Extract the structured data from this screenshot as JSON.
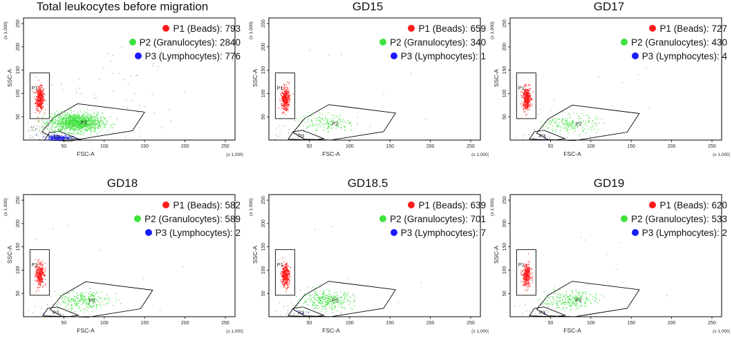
{
  "chart_data": [
    {
      "type": "scatter",
      "title": "Total leukocytes before migration",
      "xlabel": "FSC-A",
      "ylabel": "SSC-A",
      "xlim": [
        0,
        262
      ],
      "ylim": [
        0,
        262
      ],
      "xticks": [
        "50",
        "100",
        "150",
        "200",
        "250"
      ],
      "yticks": [
        "50",
        "100",
        "150",
        "200",
        "250"
      ],
      "axis_multiplier": "(x 1,000)",
      "gates": [
        "P1",
        "P2",
        "P3"
      ],
      "series": [
        {
          "name": "P1 (Beads)",
          "count": 793,
          "color": "#ff1a1a",
          "center": [
            20,
            90
          ]
        },
        {
          "name": "P2 (Granulocytes)",
          "count": 2840,
          "color": "#3ee23e",
          "center": [
            65,
            38
          ]
        },
        {
          "name": "P3 (Lymphocytes)",
          "count": 776,
          "color": "#1a1aff",
          "center": [
            42,
            6
          ]
        }
      ]
    },
    {
      "type": "scatter",
      "title": "GD15",
      "xlabel": "FSC-A",
      "ylabel": "SSC-A",
      "xlim": [
        0,
        262
      ],
      "ylim": [
        0,
        262
      ],
      "xticks": [
        "50",
        "100",
        "150",
        "200",
        "250"
      ],
      "yticks": [
        "50",
        "100",
        "150",
        "200",
        "250"
      ],
      "axis_multiplier": "(x 1,000)",
      "gates": [
        "P1",
        "P2",
        "P3"
      ],
      "series": [
        {
          "name": "P1 (Beads)",
          "count": 659,
          "color": "#ff1a1a",
          "center": [
            20,
            90
          ]
        },
        {
          "name": "P2 (Granulocytes)",
          "count": 340,
          "color": "#3ee23e",
          "center": [
            72,
            36
          ]
        },
        {
          "name": "P3 (Lymphocytes)",
          "count": 1,
          "color": "#1a1aff",
          "center": [
            40,
            8
          ]
        }
      ]
    },
    {
      "type": "scatter",
      "title": "GD17",
      "xlabel": "FSC-A",
      "ylabel": "SSC-A",
      "xlim": [
        0,
        262
      ],
      "ylim": [
        0,
        262
      ],
      "xticks": [
        "50",
        "100",
        "150",
        "200",
        "250"
      ],
      "yticks": [
        "50",
        "100",
        "150",
        "200",
        "250"
      ],
      "axis_multiplier": "(x 1,000)",
      "gates": [
        "P1",
        "P2",
        "P3"
      ],
      "series": [
        {
          "name": "P1 (Beads)",
          "count": 727,
          "color": "#ff1a1a",
          "center": [
            20,
            90
          ]
        },
        {
          "name": "P2 (Granulocytes)",
          "count": 430,
          "color": "#3ee23e",
          "center": [
            75,
            35
          ]
        },
        {
          "name": "P3 (Lymphocytes)",
          "count": 4,
          "color": "#1a1aff",
          "center": [
            40,
            8
          ]
        }
      ]
    },
    {
      "type": "scatter",
      "title": "GD18",
      "xlabel": "FSC-A",
      "ylabel": "SSC-A",
      "xlim": [
        0,
        262
      ],
      "ylim": [
        0,
        262
      ],
      "xticks": [
        "50",
        "100",
        "150",
        "200",
        "250"
      ],
      "yticks": [
        "50",
        "100",
        "150",
        "200",
        "250"
      ],
      "axis_multiplier": "(x 1,000)",
      "gates": [
        "P1",
        "P2",
        "P3"
      ],
      "series": [
        {
          "name": "P1 (Beads)",
          "count": 582,
          "color": "#ff1a1a",
          "center": [
            20,
            90
          ]
        },
        {
          "name": "P2 (Granulocytes)",
          "count": 589,
          "color": "#3ee23e",
          "center": [
            75,
            35
          ]
        },
        {
          "name": "P3 (Lymphocytes)",
          "count": 2,
          "color": "#1a1aff",
          "center": [
            40,
            8
          ]
        }
      ]
    },
    {
      "type": "scatter",
      "title": "GD18.5",
      "xlabel": "FSC-A",
      "ylabel": "SSC-A",
      "xlim": [
        0,
        262
      ],
      "ylim": [
        0,
        262
      ],
      "xticks": [
        "50",
        "100",
        "150",
        "200",
        "250"
      ],
      "yticks": [
        "50",
        "100",
        "150",
        "200",
        "250"
      ],
      "axis_multiplier": "(x 1,000)",
      "gates": [
        "P1",
        "P2",
        "P3"
      ],
      "series": [
        {
          "name": "P1 (Beads)",
          "count": 639,
          "color": "#ff1a1a",
          "center": [
            20,
            90
          ]
        },
        {
          "name": "P2 (Granulocytes)",
          "count": 701,
          "color": "#3ee23e",
          "center": [
            72,
            36
          ]
        },
        {
          "name": "P3 (Lymphocytes)",
          "count": 7,
          "color": "#1a1aff",
          "center": [
            40,
            8
          ]
        }
      ]
    },
    {
      "type": "scatter",
      "title": "GD19",
      "xlabel": "FSC-A",
      "ylabel": "SSC-A",
      "xlim": [
        0,
        262
      ],
      "ylim": [
        0,
        262
      ],
      "xticks": [
        "50",
        "100",
        "150",
        "200",
        "250"
      ],
      "yticks": [
        "50",
        "100",
        "150",
        "200",
        "250"
      ],
      "axis_multiplier": "(x 1,000)",
      "gates": [
        "P1",
        "P2",
        "P3"
      ],
      "series": [
        {
          "name": "P1 (Beads)",
          "count": 620,
          "color": "#ff1a1a",
          "center": [
            20,
            90
          ]
        },
        {
          "name": "P2 (Granulocytes)",
          "count": 533,
          "color": "#3ee23e",
          "center": [
            75,
            36
          ]
        },
        {
          "name": "P3 (Lymphocytes)",
          "count": 2,
          "color": "#1a1aff",
          "center": [
            40,
            8
          ]
        }
      ]
    }
  ]
}
